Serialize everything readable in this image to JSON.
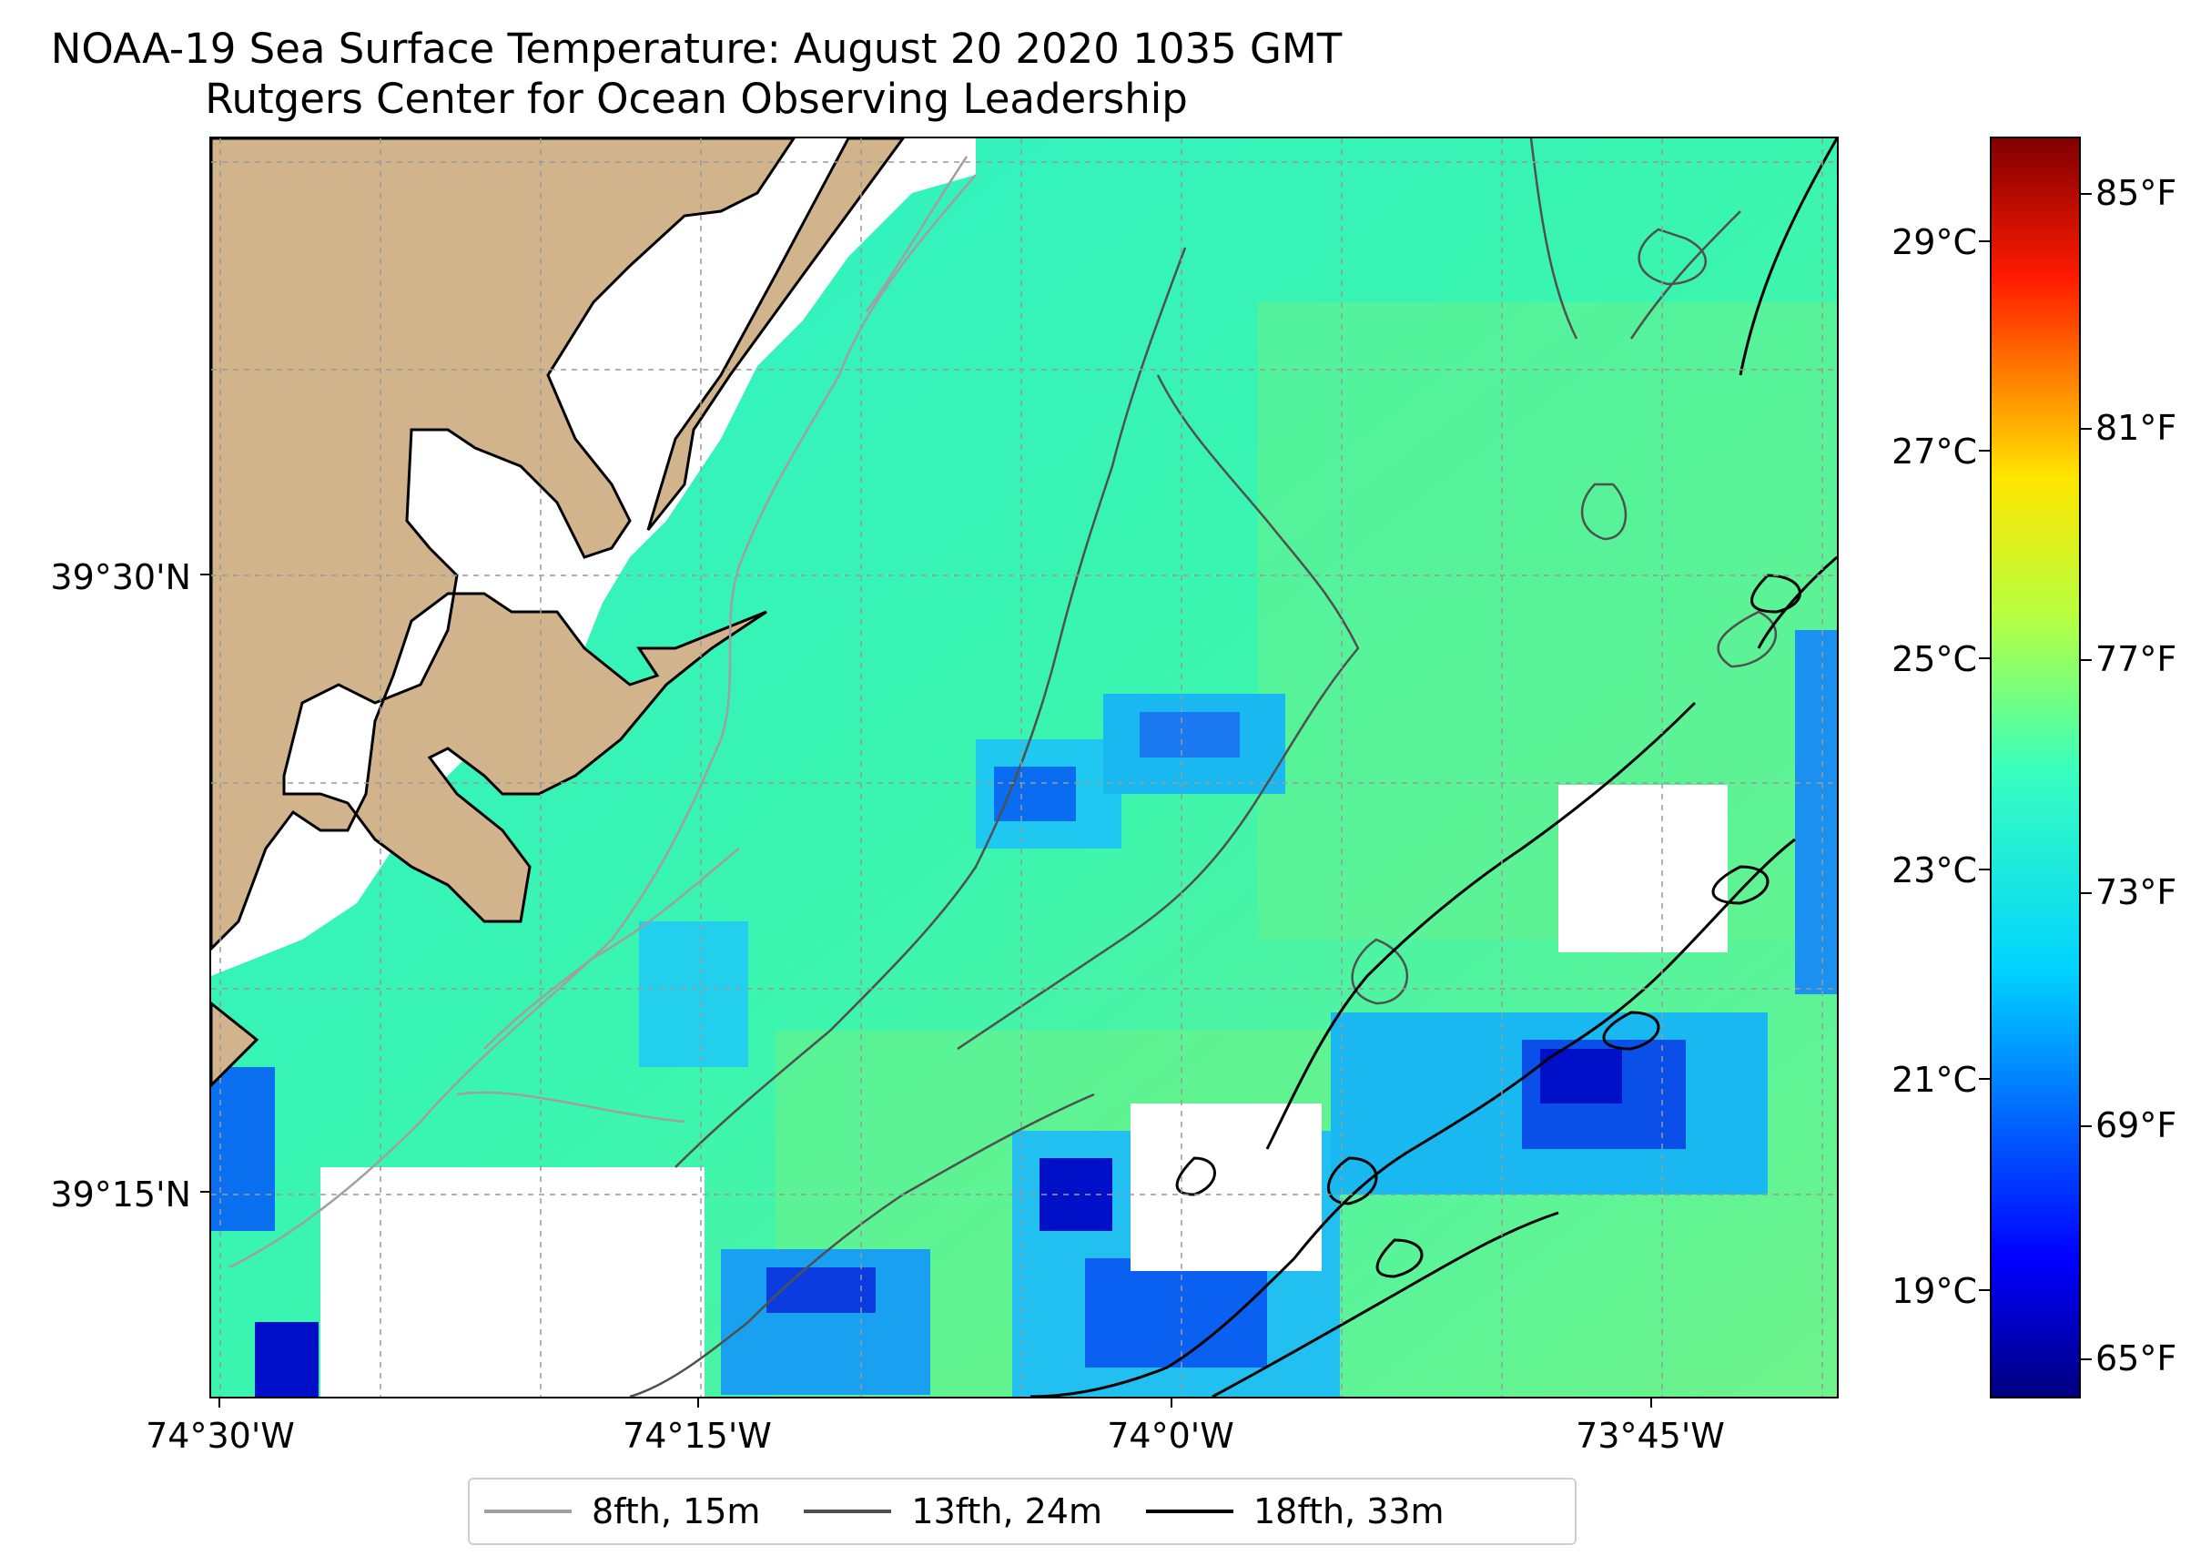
{
  "title": "NOAA-19 Sea Surface Temperature: August 20 2020 1035 GMT",
  "subtitle": "Rutgers Center for Ocean Observing Leadership",
  "map": {
    "lat_labels": [
      "39°30'N",
      "39°15'N"
    ],
    "lon_labels": [
      "74°30'W",
      "74°15'W",
      "74°0'W",
      "73°45'W"
    ],
    "land_color": "#d2b48c",
    "gridlines": "dashed"
  },
  "colorbar": {
    "colormap": "jet",
    "celsius_labels": [
      "29°C",
      "27°C",
      "25°C",
      "23°C",
      "21°C",
      "19°C"
    ],
    "fahrenheit_labels": [
      "85°F",
      "81°F",
      "77°F",
      "73°F",
      "69°F",
      "65°F"
    ]
  },
  "legend": {
    "items": [
      {
        "label": "8fth, 15m",
        "color": "#a0a0a0"
      },
      {
        "label": "13fth, 24m",
        "color": "#505050"
      },
      {
        "label": "18fth, 33m",
        "color": "#000000"
      }
    ]
  }
}
